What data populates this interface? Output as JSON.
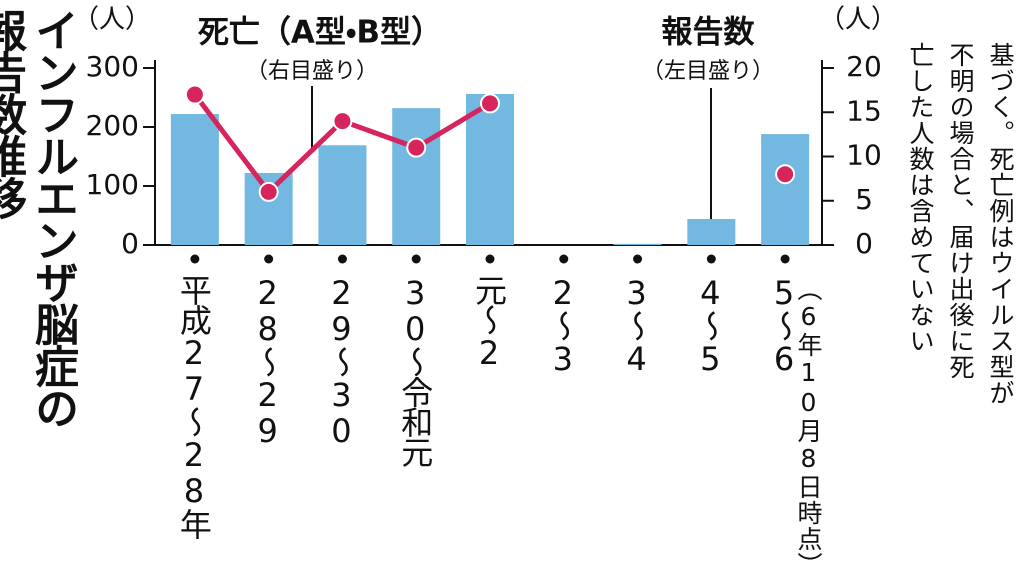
{
  "chart_data": {
    "type": "bar",
    "title_lines": [
      "インフルエンザ脳症の",
      "報告数推移"
    ],
    "categories": [
      "平成27～28年",
      "28～29",
      "29～30",
      "30～令和元",
      "元～2",
      "2～3",
      "3～4",
      "4～5",
      "5～6"
    ],
    "category_note": "（6年10月8日時点）",
    "series": [
      {
        "name": "報告数",
        "scale_label": "（左目盛り）",
        "type": "bar",
        "color": "#72b8e0",
        "values": [
          222,
          122,
          169,
          232,
          256,
          0,
          2,
          44,
          188
        ]
      },
      {
        "name": "死亡（A型・B型）",
        "scale_label": "（右目盛り）",
        "type": "line",
        "axis": "y2",
        "color": "#d6245c",
        "values": [
          17,
          6,
          14,
          11,
          16,
          null,
          null,
          null,
          8
        ]
      }
    ],
    "ylabel": "（人）",
    "ylim": [
      0,
      300
    ],
    "yticks": [
      0,
      100,
      200,
      300
    ],
    "y2label": "（人）",
    "y2lim": [
      0,
      20
    ],
    "y2ticks": [
      0,
      5,
      10,
      15,
      20
    ],
    "note_lines": [
      "基づく。死亡例はウイルス型が",
      "不明の場合と、届け出後に死",
      "亡した人数は含めていない"
    ]
  }
}
